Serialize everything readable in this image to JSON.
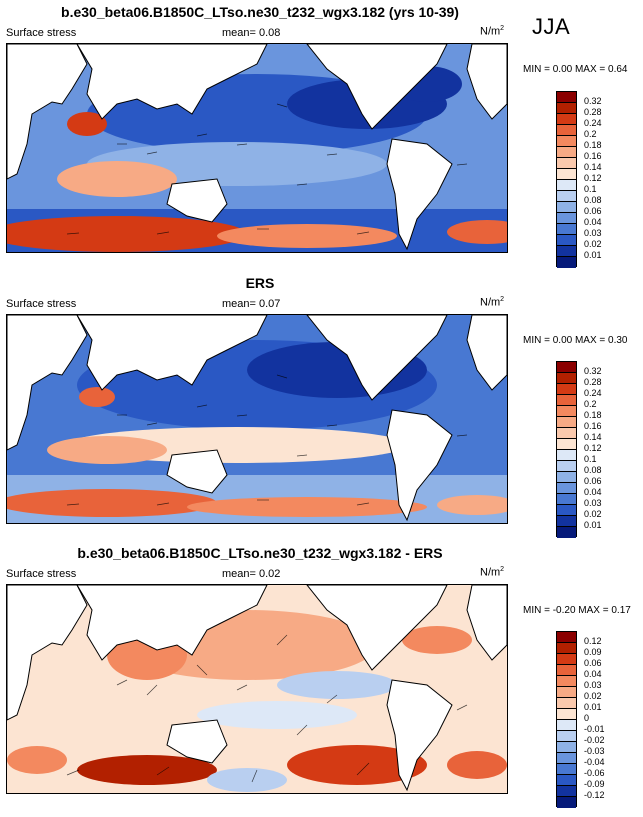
{
  "season": "JJA",
  "panels": [
    {
      "title": "b.e30_beta06.B1850C_LTso.ne30_t232_wgx3.182 (yrs 10-39)",
      "left_label": "Surface stress",
      "mean_label": "mean=  0.08",
      "units": "N/m",
      "units_exp": "2",
      "minmax": "MIN =  0.00 MAX =  0.64",
      "colorbar": {
        "labels": [
          "0.32",
          "0.28",
          "0.24",
          "0.2",
          "0.18",
          "0.16",
          "0.14",
          "0.12",
          "0.1",
          "0.08",
          "0.06",
          "0.04",
          "0.03",
          "0.02",
          "0.01"
        ],
        "colors": [
          "#8b0000",
          "#b22000",
          "#d43a14",
          "#e8633a",
          "#f3895f",
          "#f7aa85",
          "#fac9ad",
          "#fce4d2",
          "#dde8f7",
          "#b9cff0",
          "#8fb2e6",
          "#6a95dd",
          "#4878d2",
          "#2a58c4",
          "#12339f",
          "#061a7a"
        ]
      }
    },
    {
      "title": "ERS",
      "left_label": "Surface stress",
      "mean_label": "mean=  0.07",
      "units": "N/m",
      "units_exp": "2",
      "minmax": "MIN =  0.00 MAX =  0.30",
      "colorbar": {
        "labels": [
          "0.32",
          "0.28",
          "0.24",
          "0.2",
          "0.18",
          "0.16",
          "0.14",
          "0.12",
          "0.1",
          "0.08",
          "0.06",
          "0.04",
          "0.03",
          "0.02",
          "0.01"
        ],
        "colors": [
          "#8b0000",
          "#b22000",
          "#d43a14",
          "#e8633a",
          "#f3895f",
          "#f7aa85",
          "#fac9ad",
          "#fce4d2",
          "#dde8f7",
          "#b9cff0",
          "#8fb2e6",
          "#6a95dd",
          "#4878d2",
          "#2a58c4",
          "#12339f",
          "#061a7a"
        ]
      }
    },
    {
      "title": "b.e30_beta06.B1850C_LTso.ne30_t232_wgx3.182 - ERS",
      "left_label": "Surface stress",
      "mean_label": "mean=  0.02",
      "units": "N/m",
      "units_exp": "2",
      "minmax": "MIN = -0.20 MAX =  0.17",
      "colorbar": {
        "labels": [
          "0.12",
          "0.09",
          "0.06",
          "0.04",
          "0.03",
          "0.02",
          "0.01",
          "0",
          "-0.01",
          "-0.02",
          "-0.03",
          "-0.04",
          "-0.06",
          "-0.09",
          "-0.12"
        ],
        "colors": [
          "#8b0000",
          "#b22000",
          "#d43a14",
          "#e8633a",
          "#f3895f",
          "#f7aa85",
          "#fac9ad",
          "#fce4d2",
          "#dde8f7",
          "#b9cff0",
          "#8fb2e6",
          "#6a95dd",
          "#4878d2",
          "#2a58c4",
          "#12339f",
          "#061a7a"
        ]
      }
    }
  ]
}
